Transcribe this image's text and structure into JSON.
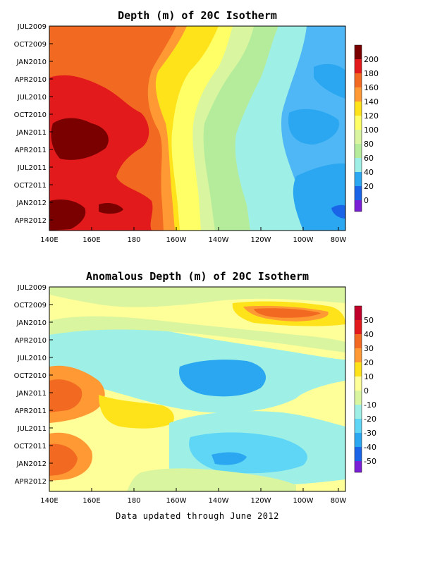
{
  "chart_data": [
    {
      "type": "heatmap",
      "title": "Depth (m) of 20C Isotherm",
      "x_ticks": [
        "140E",
        "160E",
        "180",
        "160W",
        "140W",
        "120W",
        "100W",
        "80W"
      ],
      "y_ticks": [
        "JUL2009",
        "OCT2009",
        "JAN2010",
        "APR2010",
        "JUL2010",
        "OCT2010",
        "JAN2011",
        "APR2011",
        "JUL2011",
        "OCT2011",
        "JAN2012",
        "APR2012"
      ],
      "colorbar_levels": [
        "200",
        "180",
        "160",
        "140",
        "120",
        "100",
        "80",
        "60",
        "40",
        "20",
        "0"
      ],
      "colorbar_colors": [
        "#7a0000",
        "#e31a1c",
        "#f26a21",
        "#ff9933",
        "#ffe31a",
        "#ffff66",
        "#d9f59f",
        "#b4ec9c",
        "#9ef0e6",
        "#2aa7f0",
        "#1a64e8",
        "#7b1fd6"
      ],
      "value_range": [
        0,
        200
      ],
      "summary_values": {
        "west_pacific_depth": 180,
        "central_pacific_depth": 120,
        "east_pacific_depth": 50
      }
    },
    {
      "type": "heatmap",
      "title": "Anomalous Depth (m) of 20C Isotherm",
      "x_ticks": [
        "140E",
        "160E",
        "180",
        "160W",
        "140W",
        "120W",
        "100W",
        "80W"
      ],
      "y_ticks": [
        "JUL2009",
        "OCT2009",
        "JAN2010",
        "APR2010",
        "JUL2010",
        "OCT2010",
        "JAN2011",
        "APR2011",
        "JUL2011",
        "OCT2011",
        "JAN2012",
        "APR2012"
      ],
      "colorbar_levels": [
        "50",
        "40",
        "30",
        "20",
        "10",
        "0",
        "-10",
        "-20",
        "-30",
        "-40",
        "-50"
      ],
      "colorbar_colors": [
        "#c0002a",
        "#e31a1c",
        "#f26a21",
        "#ff9933",
        "#ffe31a",
        "#ffff99",
        "#d9f59f",
        "#9ef0e6",
        "#5fd6f5",
        "#2aa7f0",
        "#1a64e8",
        "#7b1fd6"
      ],
      "value_range": [
        -50,
        50
      ],
      "summary_values": {
        "max_positive_anomaly": 40,
        "max_negative_anomaly": -30
      }
    }
  ],
  "footer": "Data updated through June 2012"
}
